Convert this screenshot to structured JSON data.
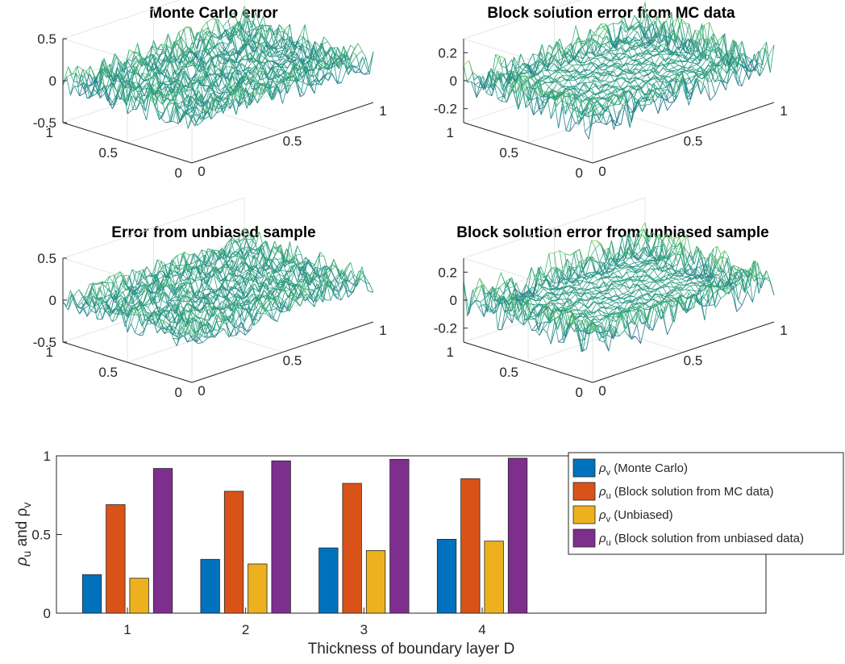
{
  "surface_panels": [
    {
      "title": "Monte Carlo error",
      "z_ticks": [
        "0.5",
        "0",
        "-0.5"
      ],
      "x_ticks": [
        "0",
        "0.5",
        "1"
      ],
      "y_ticks": [
        "1",
        "0.5",
        "0"
      ],
      "z_range": [
        -0.5,
        0.5
      ],
      "amplitude_edge": 0.18,
      "amplitude_center": 0.12
    },
    {
      "title": "Block solution error from MC data",
      "z_ticks": [
        "0.2",
        "0",
        "-0.2"
      ],
      "x_ticks": [
        "0",
        "0.5",
        "1"
      ],
      "y_ticks": [
        "1",
        "0.5",
        "0"
      ],
      "z_range": [
        -0.3,
        0.3
      ],
      "amplitude_edge": 0.14,
      "amplitude_center": 0.03
    },
    {
      "title": "Error from unbiased sample",
      "z_ticks": [
        "0.5",
        "0",
        "-0.5"
      ],
      "x_ticks": [
        "0",
        "0.5",
        "1"
      ],
      "y_ticks": [
        "1",
        "0.5",
        "0"
      ],
      "z_range": [
        -0.5,
        0.5
      ],
      "amplitude_edge": 0.15,
      "amplitude_center": 0.12
    },
    {
      "title": "Block solution error from unbiased sample",
      "z_ticks": [
        "0.2",
        "0",
        "-0.2"
      ],
      "x_ticks": [
        "0",
        "0.5",
        "1"
      ],
      "y_ticks": [
        "1",
        "0.5",
        "0"
      ],
      "z_range": [
        -0.3,
        0.3
      ],
      "amplitude_edge": 0.14,
      "amplitude_center": 0.03
    }
  ],
  "chart_data": {
    "type": "bar",
    "xlabel": "Thickness of boundary layer D",
    "ylabel_parts": [
      "ρ",
      "u",
      " and ρ",
      "v"
    ],
    "categories": [
      "1",
      "2",
      "3",
      "4"
    ],
    "ylim": [
      0,
      1
    ],
    "y_ticks": [
      "0",
      "0.5",
      "1"
    ],
    "x_range": [
      0.4,
      6.4
    ],
    "grid": false,
    "legend_position": "top-right",
    "series": [
      {
        "symbol": "ρ",
        "subscript": "v",
        "label": " (Monte Carlo)",
        "color": "#0072BD",
        "values": [
          0.245,
          0.342,
          0.415,
          0.47
        ]
      },
      {
        "symbol": "ρ",
        "subscript": "u",
        "label": " (Block solution from MC data)",
        "color": "#D95319",
        "values": [
          0.69,
          0.775,
          0.825,
          0.855
        ]
      },
      {
        "symbol": "ρ",
        "subscript": "v",
        "label": " (Unbiased)",
        "color": "#EDB120",
        "values": [
          0.222,
          0.313,
          0.398,
          0.458
        ]
      },
      {
        "symbol": "ρ",
        "subscript": "u",
        "label": " (Block solution from unbiased data)",
        "color": "#7E2F8E",
        "values": [
          0.92,
          0.968,
          0.978,
          0.985
        ]
      }
    ]
  }
}
